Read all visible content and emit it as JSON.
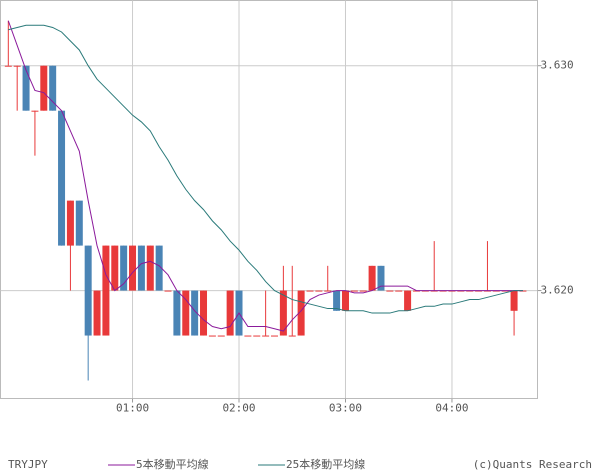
{
  "chart_data": {
    "type": "candlestick",
    "title": "TRYJPY",
    "credit": "(c)Quants Research",
    "x": [
      -10,
      -5,
      0,
      5,
      10,
      15,
      20,
      25,
      30,
      35,
      40,
      45,
      50,
      55,
      60,
      65,
      70,
      75,
      80,
      85,
      90,
      95,
      100,
      105,
      110,
      115,
      120,
      125,
      130,
      135,
      140,
      145,
      150,
      155,
      160,
      165,
      170,
      175,
      180,
      185,
      190,
      195,
      200,
      205,
      210,
      215,
      220,
      225,
      230,
      235,
      240,
      245,
      250,
      255,
      260,
      265,
      270,
      275,
      280
    ],
    "open": [
      3.63,
      3.63,
      3.63,
      3.628,
      3.628,
      3.63,
      3.628,
      3.622,
      3.624,
      3.622,
      3.618,
      3.618,
      3.62,
      3.622,
      3.62,
      3.622,
      3.62,
      3.622,
      3.62,
      3.62,
      3.618,
      3.62,
      3.618,
      3.618,
      3.618,
      3.618,
      3.62,
      3.618,
      3.618,
      3.618,
      3.618,
      3.618,
      3.618,
      3.618,
      3.62,
      3.62,
      3.62,
      3.62,
      3.6191,
      3.62,
      3.62,
      3.62,
      3.6211,
      3.62,
      3.62,
      3.6191,
      3.62,
      3.62,
      3.62,
      3.62,
      3.62,
      3.62,
      3.62,
      3.62,
      3.62,
      3.62,
      3.62,
      3.6191,
      3.62
    ],
    "high": [
      3.632,
      3.63,
      3.63,
      3.628,
      3.63,
      3.63,
      3.628,
      3.624,
      3.624,
      3.622,
      3.62,
      3.622,
      3.622,
      3.622,
      3.622,
      3.622,
      3.622,
      3.622,
      3.62,
      3.62,
      3.62,
      3.62,
      3.62,
      3.618,
      3.618,
      3.62,
      3.62,
      3.618,
      3.618,
      3.62,
      3.618,
      3.6211,
      3.6211,
      3.62,
      3.62,
      3.62,
      3.6211,
      3.62,
      3.62,
      3.62,
      3.62,
      3.6211,
      3.6211,
      3.62,
      3.62,
      3.62,
      3.62,
      3.62,
      3.6222,
      3.62,
      3.62,
      3.62,
      3.62,
      3.62,
      3.6222,
      3.62,
      3.62,
      3.62,
      3.62
    ],
    "low": [
      3.63,
      3.628,
      3.628,
      3.626,
      3.628,
      3.628,
      3.622,
      3.62,
      3.622,
      3.616,
      3.618,
      3.618,
      3.62,
      3.62,
      3.62,
      3.62,
      3.62,
      3.62,
      3.62,
      3.618,
      3.618,
      3.618,
      3.618,
      3.618,
      3.618,
      3.618,
      3.618,
      3.618,
      3.618,
      3.618,
      3.618,
      3.618,
      3.618,
      3.618,
      3.62,
      3.62,
      3.62,
      3.6191,
      3.6191,
      3.62,
      3.62,
      3.62,
      3.62,
      3.62,
      3.62,
      3.6191,
      3.62,
      3.62,
      3.62,
      3.62,
      3.62,
      3.62,
      3.62,
      3.62,
      3.62,
      3.62,
      3.62,
      3.618,
      3.62
    ],
    "close": [
      3.63,
      3.63,
      3.628,
      3.628,
      3.63,
      3.628,
      3.622,
      3.624,
      3.622,
      3.618,
      3.62,
      3.622,
      3.622,
      3.62,
      3.622,
      3.62,
      3.622,
      3.62,
      3.62,
      3.618,
      3.62,
      3.618,
      3.62,
      3.618,
      3.618,
      3.62,
      3.618,
      3.618,
      3.618,
      3.618,
      3.618,
      3.62,
      3.618,
      3.62,
      3.62,
      3.62,
      3.62,
      3.6191,
      3.62,
      3.62,
      3.62,
      3.6211,
      3.62,
      3.62,
      3.62,
      3.62,
      3.62,
      3.62,
      3.62,
      3.62,
      3.62,
      3.62,
      3.62,
      3.62,
      3.62,
      3.62,
      3.62,
      3.62,
      3.62
    ],
    "up_color": "#e8393a",
    "down_color": "#4a84b5",
    "series": [
      {
        "name": "5本移動平均線",
        "color": "#8b1a9b",
        "values": [
          3.632,
          3.6309,
          3.6298,
          3.6289,
          3.6288,
          3.6284,
          3.628,
          3.6271,
          3.6262,
          3.624,
          3.622,
          3.6207,
          3.62,
          3.6203,
          3.6208,
          3.6212,
          3.6213,
          3.6211,
          3.6207,
          3.62,
          3.6196,
          3.6191,
          3.6187,
          3.6184,
          3.6183,
          3.6184,
          3.619,
          3.6184,
          3.6184,
          3.6184,
          3.6183,
          3.6182,
          3.6187,
          3.6191,
          3.6196,
          3.6198,
          3.6199,
          3.62,
          3.62,
          3.6199,
          3.6199,
          3.62,
          3.6202,
          3.6202,
          3.6202,
          3.6202,
          3.62,
          3.62,
          3.62,
          3.62,
          3.62,
          3.62,
          3.62,
          3.62,
          3.62,
          3.62,
          3.62,
          3.62,
          3.62
        ]
      },
      {
        "name": "25本移動平均線",
        "color": "#2a7a7a",
        "values": [
          3.6316,
          3.6317,
          3.6318,
          3.6318,
          3.6318,
          3.6317,
          3.6315,
          3.6311,
          3.6307,
          3.63,
          3.6294,
          3.629,
          3.6286,
          3.6282,
          3.6278,
          3.6275,
          3.6271,
          3.6264,
          3.6258,
          3.6251,
          3.6245,
          3.624,
          3.6236,
          3.6231,
          3.6227,
          3.6222,
          3.6218,
          3.6213,
          3.6209,
          3.6204,
          3.62,
          3.6198,
          3.6196,
          3.6195,
          3.6194,
          3.6193,
          3.6192,
          3.6192,
          3.6191,
          3.6191,
          3.6191,
          3.619,
          3.619,
          3.619,
          3.6191,
          3.6191,
          3.6192,
          3.6193,
          3.6193,
          3.6194,
          3.6194,
          3.6195,
          3.6196,
          3.6196,
          3.6197,
          3.6198,
          3.6199,
          3.62,
          3.62
        ]
      }
    ],
    "xlim": [
      -14.4,
      288.2
    ],
    "xticks": [
      {
        "value": 60,
        "label": "01:00"
      },
      {
        "value": 120,
        "label": "02:00"
      },
      {
        "value": 180,
        "label": "03:00"
      },
      {
        "value": 240,
        "label": "04:00"
      }
    ],
    "ylim": [
      3.6152,
      3.6329
    ],
    "yticks": [
      {
        "value": 3.62,
        "label": "3.620"
      },
      {
        "value": 3.63,
        "label": "3.630"
      }
    ],
    "grid": true
  }
}
